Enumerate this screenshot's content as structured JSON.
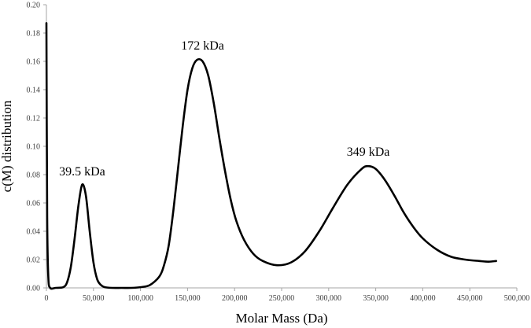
{
  "chart_data": {
    "type": "line",
    "title": "",
    "xlabel": "Molar Mass (Da)",
    "ylabel": "c(M) distribution",
    "xlim": [
      0,
      500000
    ],
    "ylim": [
      0,
      0.2
    ],
    "grid": false,
    "legend": null,
    "x_ticks": [
      0,
      50000,
      100000,
      150000,
      200000,
      250000,
      300000,
      350000,
      400000,
      450000,
      500000
    ],
    "x_tick_labels": [
      "0",
      "50,000",
      "100,000",
      "150,000",
      "200,000",
      "250,000",
      "300,000",
      "350,000",
      "400,000",
      "450,000",
      "500,000"
    ],
    "y_ticks": [
      0,
      0.02,
      0.04,
      0.06,
      0.08,
      0.1,
      0.12,
      0.14,
      0.16,
      0.18,
      0.2
    ],
    "y_tick_labels": [
      "0.00",
      "0.02",
      "0.04",
      "0.06",
      "0.08",
      "0.10",
      "0.12",
      "0.14",
      "0.16",
      "0.18",
      "0.20"
    ],
    "series": [
      {
        "name": "c(M)",
        "color": "#000000",
        "x": [
          0,
          800,
          2000,
          4000,
          10000,
          18000,
          22000,
          26000,
          30000,
          34000,
          38000,
          42000,
          46000,
          50000,
          54000,
          58000,
          62000,
          70000,
          80000,
          90000,
          100000,
          110000,
          120000,
          125000,
          130000,
          135000,
          140000,
          145000,
          150000,
          155000,
          160000,
          166000,
          172000,
          178000,
          184000,
          190000,
          196000,
          202000,
          210000,
          220000,
          230000,
          245000,
          260000,
          275000,
          290000,
          305000,
          320000,
          335000,
          342000,
          350000,
          360000,
          370000,
          380000,
          390000,
          400000,
          415000,
          430000,
          445000,
          460000,
          470000,
          478000
        ],
        "y": [
          0.187,
          0.05,
          0.008,
          0.0,
          0.0,
          0.0005,
          0.004,
          0.015,
          0.035,
          0.058,
          0.073,
          0.065,
          0.04,
          0.018,
          0.006,
          0.002,
          0.0005,
          0.0,
          0.0,
          0.0,
          0.0005,
          0.002,
          0.008,
          0.016,
          0.03,
          0.055,
          0.085,
          0.115,
          0.14,
          0.155,
          0.161,
          0.16,
          0.15,
          0.13,
          0.105,
          0.082,
          0.062,
          0.047,
          0.034,
          0.024,
          0.019,
          0.016,
          0.018,
          0.026,
          0.04,
          0.057,
          0.073,
          0.084,
          0.086,
          0.084,
          0.076,
          0.065,
          0.053,
          0.043,
          0.035,
          0.027,
          0.022,
          0.02,
          0.019,
          0.0185,
          0.019
        ]
      }
    ],
    "annotations": [
      {
        "text": "39.5 kDa",
        "x": 38000,
        "y": 0.075
      },
      {
        "text": "172 kDa",
        "x": 166000,
        "y": 0.164
      },
      {
        "text": "349 kDa",
        "x": 342000,
        "y": 0.089
      }
    ]
  }
}
